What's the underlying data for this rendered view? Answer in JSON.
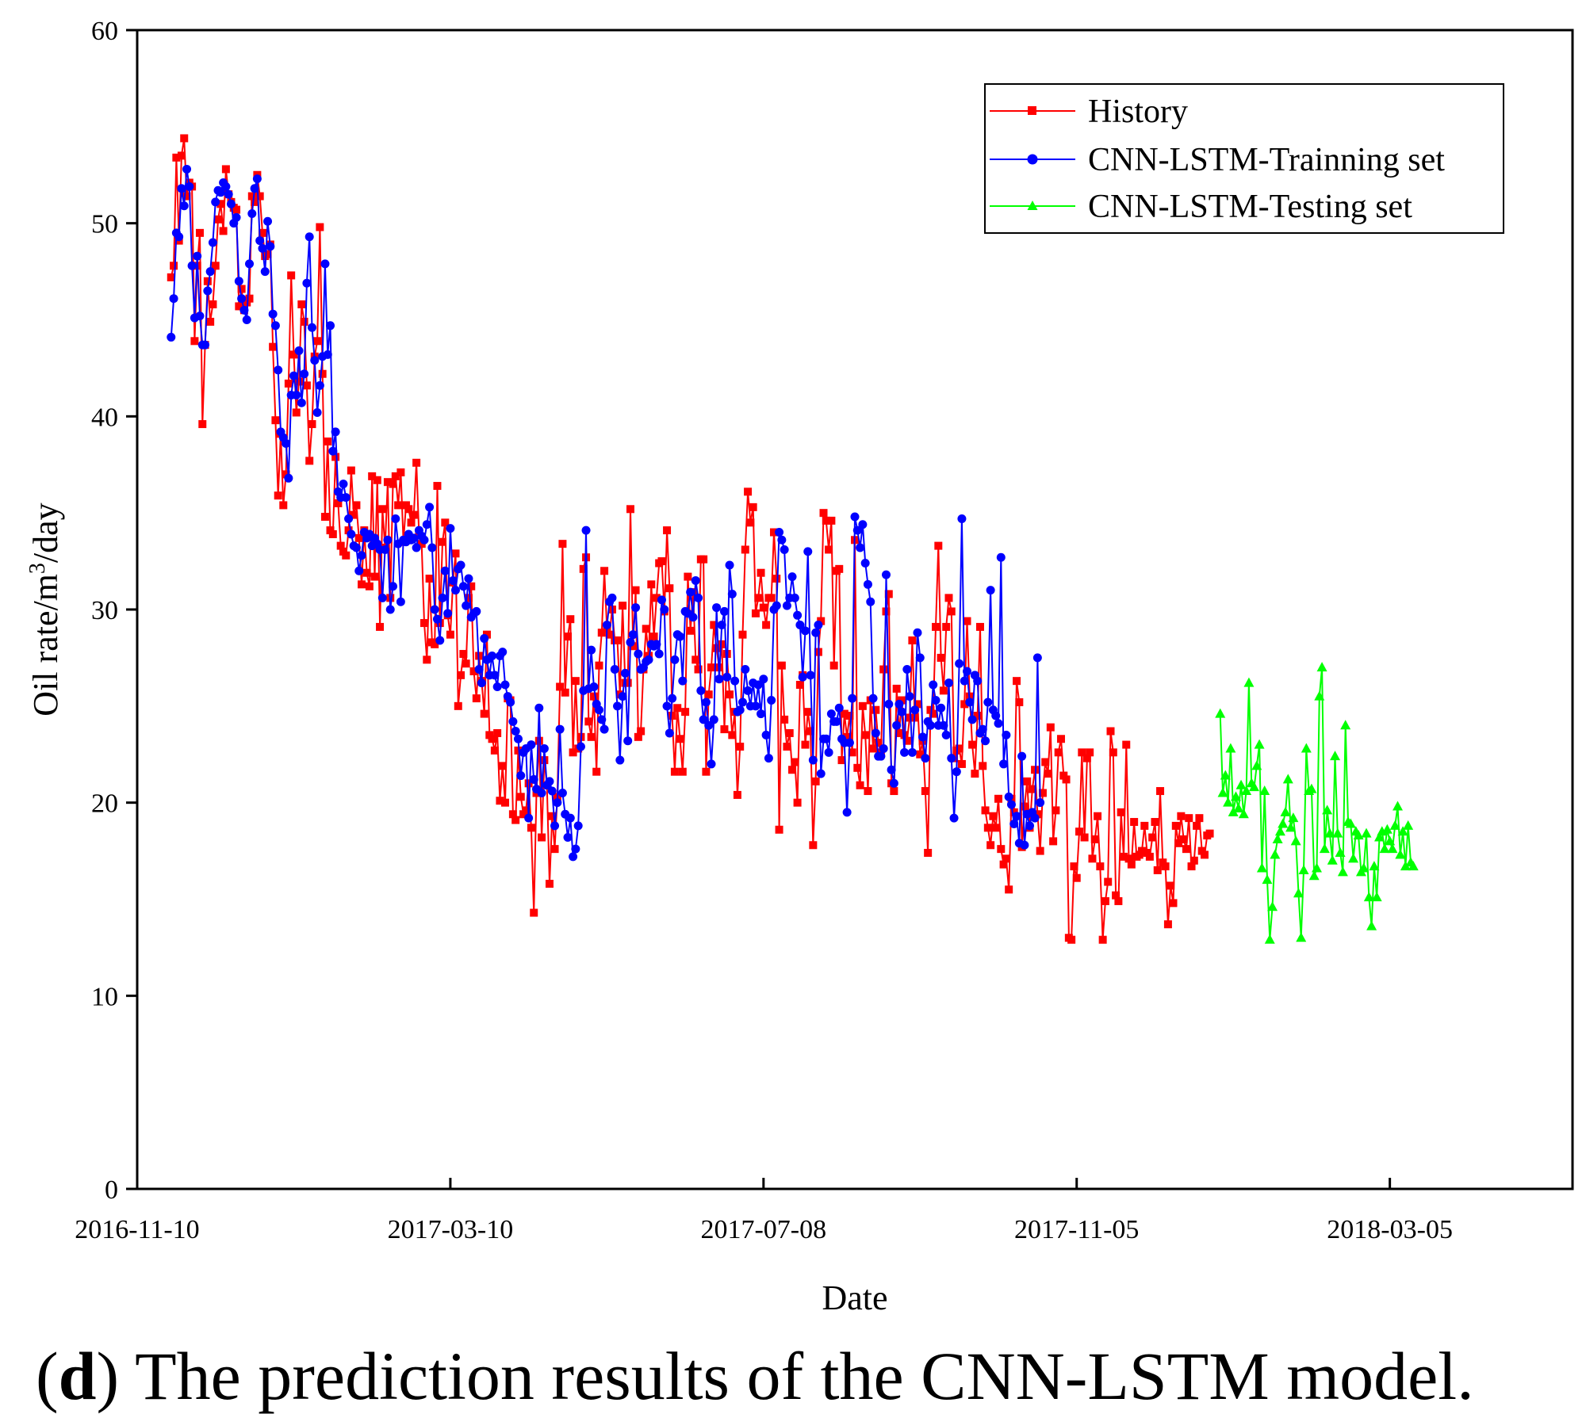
{
  "chart_data": {
    "type": "line",
    "title": "",
    "xlabel": "Date",
    "ylabel_main": "Oil rate/m",
    "ylabel_sup": "3",
    "ylabel_tail": "/day",
    "ylim": [
      0,
      60
    ],
    "yticks": [
      0,
      10,
      20,
      30,
      40,
      50,
      60
    ],
    "xlim_day": [
      0,
      550
    ],
    "xticks": [
      {
        "day": 0,
        "label": "2016-11-10"
      },
      {
        "day": 120,
        "label": "2017-03-10"
      },
      {
        "day": 240,
        "label": "2017-07-08"
      },
      {
        "day": 360,
        "label": "2017-11-05"
      },
      {
        "day": 480,
        "label": "2018-03-05"
      }
    ],
    "legend_position": "top-right",
    "series": [
      {
        "name": "History",
        "color": "#ff0000",
        "marker": "square",
        "x_start": 13,
        "x_step": 1,
        "values": [
          47.2,
          47.8,
          53.4,
          49.1,
          53.5,
          54.4,
          51.4,
          52.1,
          51.9,
          43.9,
          47.8,
          49.5,
          39.6,
          43.7,
          47.0,
          44.9,
          45.8,
          47.8,
          50.2,
          51.0,
          49.6,
          52.8,
          51.5,
          51.1,
          50.8,
          50.7,
          45.7,
          46.6,
          45.5,
          45.9,
          46.1,
          51.4,
          51.1,
          52.5,
          51.4,
          49.5,
          48.3,
          48.4,
          48.9,
          43.6,
          39.8,
          35.9,
          39.1,
          35.4,
          37.0,
          41.7,
          47.3,
          43.2,
          40.2,
          41.8,
          45.8,
          44.9,
          41.6,
          37.7,
          39.6,
          43.1,
          43.9,
          49.8,
          42.2,
          34.8,
          38.7,
          34.1,
          33.9,
          37.9,
          35.5,
          33.3,
          33.0,
          32.8,
          34.1,
          37.2,
          34.9,
          35.4,
          33.7,
          31.3,
          34.1,
          31.9,
          31.2,
          36.9,
          31.7,
          36.7,
          29.1,
          35.2,
          33.2,
          36.6,
          30.6,
          36.5,
          36.9,
          35.4,
          37.1,
          33.5,
          35.4,
          35.2,
          34.5,
          34.9,
          37.6,
          33.9,
          33.4,
          29.3,
          27.4,
          31.6,
          28.3,
          28.2,
          36.4,
          29.3,
          33.5,
          34.5,
          29.7,
          28.7,
          31.4,
          32.9,
          25.0,
          26.6,
          27.7,
          27.2,
          30.6,
          31.2,
          26.8,
          25.4,
          27.6,
          26.3,
          24.6,
          28.7,
          23.5,
          23.3,
          22.7,
          23.6,
          20.1,
          21.9,
          20.0,
          25.4,
          25.3,
          19.4,
          19.1,
          22.7,
          20.3,
          19.4,
          19.6,
          21.0,
          18.7,
          14.3,
          20.5,
          23.2,
          18.2,
          22.2,
          20.9,
          15.8,
          19.3,
          17.6,
          20.3,
          26.0,
          33.4,
          25.7,
          28.6,
          29.5,
          22.6,
          26.3,
          22.8,
          23.4,
          32.1,
          32.7,
          24.2,
          23.4,
          25.5,
          21.6,
          27.1,
          28.8,
          32.0,
          29.0,
          28.7,
          30.0,
          28.4,
          28.4,
          25.6,
          30.2,
          26.2,
          26.2,
          35.2,
          28.1,
          31.0,
          23.4,
          23.7,
          26.9,
          29.0,
          27.6,
          31.3,
          28.6,
          30.6,
          32.4,
          32.5,
          29.9,
          34.1,
          31.1,
          24.5,
          21.6,
          24.9,
          23.3,
          21.6,
          24.7,
          31.7,
          28.9,
          30.9,
          27.4,
          26.9,
          32.6,
          32.6,
          21.6,
          25.6,
          27.0,
          29.2,
          28.0,
          27.0,
          28.2,
          23.8,
          27.7,
          25.6,
          23.5,
          24.7,
          20.4,
          22.9,
          28.7,
          33.1,
          36.1,
          34.5,
          35.3,
          29.8,
          30.6,
          31.9,
          30.1,
          29.2,
          30.6,
          30.6,
          34.0,
          31.6,
          18.6,
          27.1,
          24.3,
          22.9,
          23.6,
          21.7,
          22.1,
          20.0,
          26.1,
          26.6,
          23.0,
          24.7,
          23.7,
          17.8,
          21.1,
          27.8,
          29.4,
          35.0,
          34.6,
          33.1,
          34.6,
          27.1,
          32.0,
          32.1,
          22.2,
          24.6,
          23.4,
          24.5,
          22.6,
          33.6,
          21.8,
          20.9,
          25.0,
          23.5,
          20.6,
          25.3,
          22.8,
          24.8,
          23.1,
          22.6,
          26.9,
          29.9,
          30.8,
          21.0,
          20.6,
          25.9,
          23.6,
          25.3,
          23.5,
          23.2,
          24.4,
          28.4,
          24.4,
          25.1,
          22.5,
          23.2,
          20.6,
          17.4,
          24.8,
          24.6,
          29.1,
          33.3,
          27.5,
          25.8,
          29.1,
          30.6,
          29.9,
          22.3,
          22.7,
          22.8,
          22.0,
          25.1,
          29.4,
          25.5,
          23.0,
          21.5,
          24.5,
          29.1,
          21.9,
          19.6,
          18.7,
          17.8,
          19.3,
          18.7,
          20.2,
          17.6,
          16.8,
          17.1,
          15.5,
          20.2,
          19.5,
          26.3,
          25.2,
          17.7,
          19.8,
          21.1,
          18.7,
          20.7,
          21.7,
          19.4,
          17.5,
          20.5,
          22.1,
          21.5,
          23.9,
          18.0,
          19.6,
          22.6,
          23.3,
          21.4,
          21.2,
          13.0,
          12.9,
          16.7,
          16.1,
          18.5,
          22.6,
          18.2,
          22.3,
          22.6,
          17.1,
          18.1,
          19.3,
          16.7,
          12.9,
          14.9,
          15.9,
          23.7,
          22.6,
          15.2,
          14.9,
          19.5,
          17.2,
          23.0,
          17.1,
          16.8,
          19.0,
          17.2,
          17.3,
          17.5,
          18.8,
          17.4,
          17.2,
          18.2,
          19.0,
          16.5,
          20.6,
          16.9,
          16.7,
          13.7,
          15.7,
          14.8,
          18.8,
          17.9,
          19.3,
          18.1,
          17.6,
          19.2,
          16.7,
          17.0,
          18.8,
          19.2,
          17.5,
          17.3,
          18.3,
          18.4
        ]
      },
      {
        "name": "CNN-LSTM-Trainning set",
        "color": "#0000ff",
        "marker": "circle",
        "x_start": 13,
        "x_step": 1,
        "values": [
          44.1,
          46.1,
          49.5,
          49.3,
          51.8,
          50.9,
          52.8,
          51.9,
          47.8,
          45.1,
          48.3,
          45.2,
          43.7,
          43.7,
          46.5,
          47.5,
          49.0,
          51.1,
          51.7,
          51.6,
          52.1,
          51.9,
          51.5,
          51.0,
          50.0,
          50.3,
          47.0,
          46.1,
          45.5,
          45.0,
          47.9,
          50.5,
          51.8,
          52.3,
          49.1,
          48.7,
          47.5,
          50.1,
          48.8,
          45.3,
          44.7,
          42.4,
          39.2,
          38.9,
          38.6,
          36.8,
          41.1,
          42.1,
          41.1,
          43.4,
          40.7,
          42.2,
          46.9,
          49.3,
          44.6,
          42.9,
          40.2,
          41.6,
          43.1,
          47.9,
          43.2,
          44.7,
          38.2,
          39.2,
          36.1,
          35.8,
          36.5,
          35.8,
          34.7,
          33.9,
          33.3,
          33.2,
          32.0,
          32.8,
          34.0,
          33.7,
          33.9,
          33.3,
          33.7,
          33.4,
          33.1,
          30.6,
          33.1,
          33.6,
          30.0,
          31.2,
          34.7,
          33.4,
          30.4,
          33.6,
          33.5,
          33.9,
          33.6,
          33.7,
          33.2,
          34.1,
          33.8,
          33.6,
          34.4,
          35.3,
          33.2,
          30.0,
          29.5,
          28.4,
          30.6,
          32.0,
          29.8,
          34.2,
          31.5,
          31.0,
          32.1,
          32.3,
          31.2,
          30.2,
          31.6,
          29.6,
          29.8,
          29.9,
          26.9,
          26.2,
          28.5,
          27.4,
          26.6,
          27.6,
          26.6,
          26.0,
          27.6,
          27.8,
          26.1,
          25.5,
          25.2,
          24.2,
          23.7,
          23.3,
          21.4,
          22.6,
          22.8,
          19.2,
          23.0,
          21.2,
          20.7,
          24.9,
          20.5,
          22.8,
          20.9,
          21.1,
          20.6,
          18.8,
          20.0,
          23.8,
          20.5,
          19.4,
          18.2,
          19.2,
          17.2,
          17.6,
          18.8,
          22.9,
          25.8,
          34.1,
          25.9,
          27.9,
          26.0,
          25.1,
          24.8,
          24.3,
          23.8,
          29.2,
          30.4,
          30.6,
          26.9,
          25.0,
          22.2,
          25.5,
          26.7,
          23.2,
          28.3,
          28.7,
          30.1,
          27.7,
          26.9,
          27.0,
          27.3,
          27.4,
          28.2,
          28.1,
          28.2,
          27.7,
          30.5,
          30.0,
          25.0,
          23.6,
          25.4,
          27.4,
          28.7,
          28.6,
          26.3,
          29.9,
          29.8,
          30.9,
          29.6,
          31.5,
          30.6,
          25.8,
          24.3,
          25.2,
          24.0,
          22.0,
          24.3,
          30.1,
          26.4,
          29.2,
          29.9,
          26.5,
          32.3,
          30.8,
          26.3,
          24.7,
          24.8,
          25.2,
          26.9,
          25.8,
          25.0,
          26.2,
          25.0,
          26.1,
          24.6,
          26.4,
          23.5,
          22.3,
          25.3,
          30.0,
          30.2,
          34.0,
          33.6,
          33.1,
          30.2,
          30.6,
          31.7,
          30.6,
          29.7,
          29.2,
          26.5,
          28.9,
          33.0,
          26.6,
          22.2,
          28.8,
          29.2,
          21.5,
          23.3,
          23.3,
          22.6,
          24.6,
          24.2,
          24.2,
          24.9,
          23.3,
          23.1,
          19.5,
          23.1,
          25.4,
          34.8,
          34.1,
          33.2,
          34.4,
          32.4,
          31.3,
          30.4,
          25.4,
          23.6,
          22.4,
          22.4,
          22.8,
          31.8,
          25.1,
          21.7,
          21.0,
          24.0,
          25.1,
          24.7,
          22.6,
          26.9,
          25.5,
          22.6,
          24.8,
          28.8,
          27.5,
          23.4,
          22.3,
          24.2,
          24.0,
          26.1,
          25.3,
          24.0,
          24.9,
          24.0,
          23.5,
          26.2,
          22.3,
          19.2,
          21.6,
          27.2,
          34.7,
          26.3,
          26.8,
          25.2,
          24.3,
          26.6,
          26.3,
          23.6,
          23.8,
          23.2,
          25.2,
          31.0,
          24.8,
          24.5,
          24.1,
          32.7,
          22.0,
          23.5,
          20.3,
          19.9,
          18.9,
          19.3,
          17.9,
          22.4,
          17.8,
          19.4,
          18.8,
          19.5,
          19.2,
          27.5,
          20.0
        ]
      },
      {
        "name": "CNN-LSTM-Testing set",
        "color": "#00ff00",
        "marker": "triangle",
        "x_start": 415,
        "x_step": 1,
        "values": [
          24.6,
          20.5,
          21.4,
          20.0,
          22.8,
          19.5,
          20.3,
          19.7,
          20.9,
          19.4,
          20.6,
          26.2,
          21.0,
          20.8,
          21.9,
          23.0,
          16.6,
          20.6,
          16.0,
          12.9,
          14.6,
          17.3,
          18.1,
          18.5,
          18.9,
          19.5,
          21.2,
          18.7,
          19.2,
          18.0,
          15.3,
          13.0,
          16.5,
          22.8,
          20.6,
          20.7,
          16.2,
          16.6,
          25.5,
          27.0,
          17.6,
          19.6,
          18.4,
          17.0,
          22.4,
          18.4,
          17.4,
          16.4,
          24.0,
          19.0,
          18.9,
          17.1,
          18.5,
          18.3,
          16.4,
          16.6,
          18.4,
          15.1,
          13.6,
          16.7,
          15.1,
          18.2,
          18.5,
          17.6,
          18.6,
          18.0,
          17.6,
          18.8,
          19.8,
          17.3,
          18.5,
          16.7,
          18.8,
          16.9,
          16.7
        ]
      }
    ]
  },
  "caption": {
    "open": "(",
    "letter": "d",
    "rest": ") The prediction results of the CNN-LSTM model."
  }
}
